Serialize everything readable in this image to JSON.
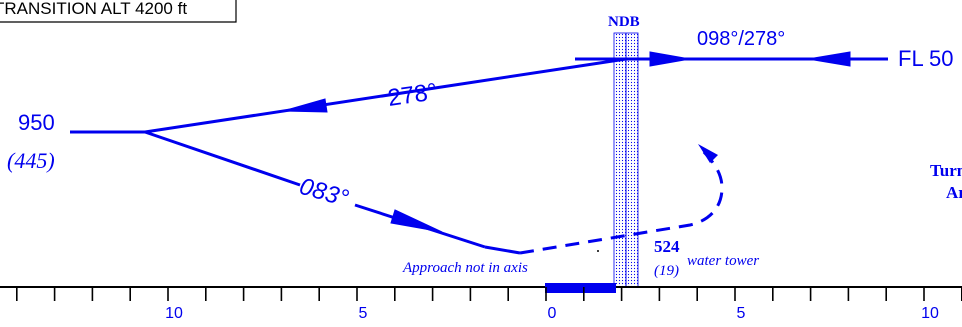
{
  "header_box": {
    "text": "TRANSITION ALT 4200 ft"
  },
  "navaid": {
    "label": "NDB"
  },
  "inbound": {
    "track_label": "098°/278°",
    "level_label": "FL 50"
  },
  "outbound": {
    "track_label": "278°"
  },
  "procedure_turn": {
    "track_label": "083°"
  },
  "fix_altitude": {
    "alt": "950",
    "height": "(445)"
  },
  "note": {
    "text": "Approach not in axis"
  },
  "obstacle": {
    "alt": "524",
    "height": "(19)",
    "desc": "water tower"
  },
  "turn_note": {
    "line1": "Turn",
    "line2": "Ar"
  },
  "distance_scale": {
    "labels": [
      {
        "value": "10",
        "pos": -10
      },
      {
        "value": "5",
        "pos": -5
      },
      {
        "value": "0",
        "pos": 0
      },
      {
        "value": "5",
        "pos": 5
      },
      {
        "value": "10",
        "pos": 10
      }
    ],
    "ticks": [
      -14,
      -13,
      -12,
      -11,
      -10,
      -9,
      -8,
      -7,
      -6,
      -5,
      -4,
      -3,
      -2,
      -1,
      0,
      1,
      2,
      3,
      4,
      5,
      6,
      7,
      8,
      9,
      10,
      11
    ]
  },
  "colors": {
    "route": "#0000ee",
    "ink": "#000000"
  }
}
